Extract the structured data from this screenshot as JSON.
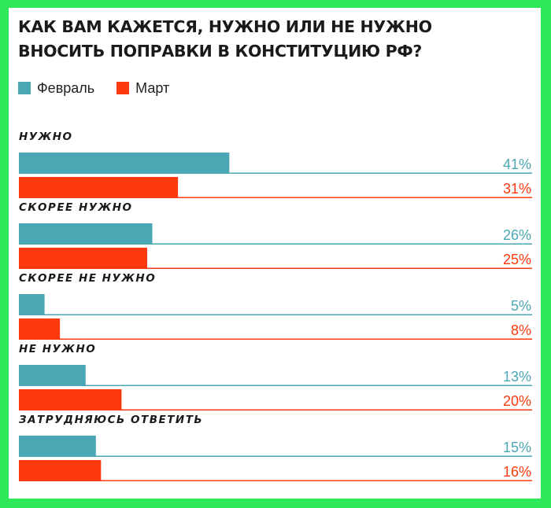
{
  "title_line1": "КАК ВАМ КАЖЕТСЯ, НУЖНО ИЛИ НЕ НУЖНО",
  "title_line2": "ВНОСИТЬ ПОПРАВКИ В КОНСТИТУЦИЮ РФ?",
  "colors": {
    "feb": "#4aa7b4",
    "mar": "#fd3a0f",
    "background": "#2ee85a"
  },
  "chart_data": {
    "type": "bar",
    "orientation": "horizontal",
    "title": "КАК ВАМ КАЖЕТСЯ, НУЖНО ИЛИ НЕ НУЖНО ВНОСИТЬ ПОПРАВКИ В КОНСТИТУЦИЮ РФ?",
    "categories": [
      "НУЖНО",
      "СКОРЕЕ НУЖНО",
      "СКОРЕЕ НЕ НУЖНО",
      "НЕ НУЖНО",
      "ЗАТРУДНЯЮСЬ ОТВЕТИТЬ"
    ],
    "series": [
      {
        "name": "Февраль",
        "values": [
          41,
          26,
          5,
          13,
          15
        ],
        "labels": [
          "41%",
          "26%",
          "5%",
          "13%",
          "15%"
        ]
      },
      {
        "name": "Март",
        "values": [
          31,
          25,
          8,
          20,
          16
        ],
        "labels": [
          "31%",
          "25%",
          "8%",
          "20%",
          "16%"
        ]
      }
    ],
    "xlim": [
      0,
      100
    ],
    "legend": "top-left",
    "grid": false
  }
}
